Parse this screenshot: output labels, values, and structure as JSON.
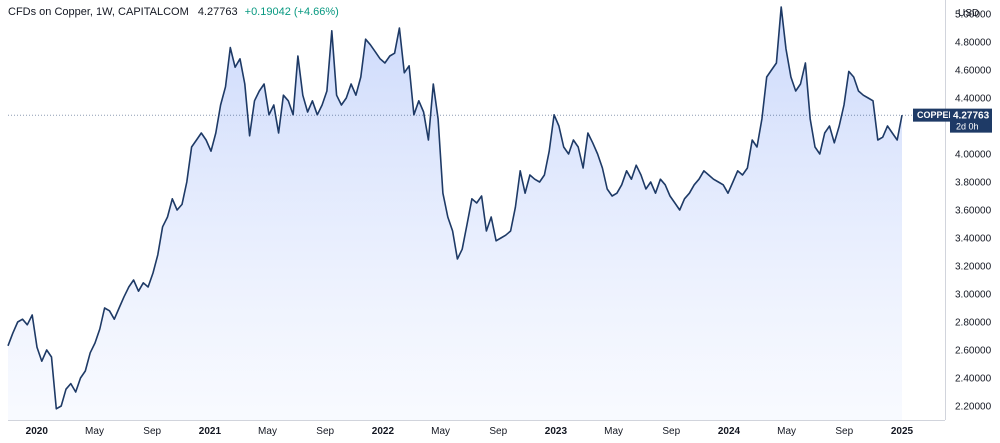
{
  "header": {
    "title": "CFDs on Copper, 1W, CAPITALCOM",
    "last_value": "4.27763",
    "change": "+0.19042 (+4.66%)"
  },
  "price_axis": {
    "currency": "USD",
    "ticks": [
      "5.00000",
      "4.80000",
      "4.60000",
      "4.40000",
      "4.20000",
      "4.00000",
      "3.80000",
      "3.60000",
      "3.40000",
      "3.20000",
      "3.00000",
      "2.80000",
      "2.60000",
      "2.40000",
      "2.20000"
    ]
  },
  "label_badge": {
    "symbol": "COPPER",
    "price": "4.27763",
    "countdown": "2d 0h"
  },
  "colors": {
    "line": "#1e3a66",
    "fill_top": "#c9d7fb",
    "fill_bottom": "#f4f7ff",
    "badge": "#1e3a66",
    "change": "#089981"
  },
  "chart_data": {
    "type": "area",
    "title": "CFDs on Copper, 1W, CAPITALCOM",
    "ylabel": "USD",
    "ylim": [
      2.1,
      5.1
    ],
    "grid": false,
    "x_ticks": [
      {
        "label": "2020",
        "x": "2020-01"
      },
      {
        "label": "May",
        "x": "2020-05"
      },
      {
        "label": "Sep",
        "x": "2020-09"
      },
      {
        "label": "2021",
        "x": "2021-01"
      },
      {
        "label": "May",
        "x": "2021-05"
      },
      {
        "label": "Sep",
        "x": "2021-09"
      },
      {
        "label": "2022",
        "x": "2022-01"
      },
      {
        "label": "May",
        "x": "2022-05"
      },
      {
        "label": "Sep",
        "x": "2022-09"
      },
      {
        "label": "2023",
        "x": "2023-01"
      },
      {
        "label": "May",
        "x": "2023-05"
      },
      {
        "label": "Sep",
        "x": "2023-09"
      },
      {
        "label": "2024",
        "x": "2024-01"
      },
      {
        "label": "May",
        "x": "2024-05"
      },
      {
        "label": "Sep",
        "x": "2024-09"
      },
      {
        "label": "2025",
        "x": "2025-01"
      }
    ],
    "series": [
      {
        "values": [
          [
            "2019-11",
            2.63
          ],
          [
            "2019-12",
            2.72
          ],
          [
            "2019-12",
            2.8
          ],
          [
            "2020-01",
            2.82
          ],
          [
            "2020-01",
            2.78
          ],
          [
            "2020-01",
            2.85
          ],
          [
            "2020-02",
            2.62
          ],
          [
            "2020-02",
            2.52
          ],
          [
            "2020-02",
            2.6
          ],
          [
            "2020-03",
            2.55
          ],
          [
            "2020-03",
            2.18
          ],
          [
            "2020-03",
            2.2
          ],
          [
            "2020-04",
            2.32
          ],
          [
            "2020-04",
            2.36
          ],
          [
            "2020-04",
            2.3
          ],
          [
            "2020-05",
            2.4
          ],
          [
            "2020-05",
            2.45
          ],
          [
            "2020-05",
            2.58
          ],
          [
            "2020-06",
            2.65
          ],
          [
            "2020-06",
            2.75
          ],
          [
            "2020-06",
            2.9
          ],
          [
            "2020-07",
            2.88
          ],
          [
            "2020-07",
            2.82
          ],
          [
            "2020-07",
            2.9
          ],
          [
            "2020-08",
            2.98
          ],
          [
            "2020-08",
            3.05
          ],
          [
            "2020-08",
            3.1
          ],
          [
            "2020-09",
            3.02
          ],
          [
            "2020-09",
            3.08
          ],
          [
            "2020-09",
            3.05
          ],
          [
            "2020-10",
            3.15
          ],
          [
            "2020-10",
            3.28
          ],
          [
            "2020-10",
            3.48
          ],
          [
            "2020-11",
            3.55
          ],
          [
            "2020-11",
            3.68
          ],
          [
            "2020-11",
            3.6
          ],
          [
            "2020-12",
            3.64
          ],
          [
            "2020-12",
            3.8
          ],
          [
            "2020-12",
            4.05
          ],
          [
            "2021-01",
            4.1
          ],
          [
            "2021-01",
            4.15
          ],
          [
            "2021-01",
            4.1
          ],
          [
            "2021-02",
            4.02
          ],
          [
            "2021-02",
            4.15
          ],
          [
            "2021-02",
            4.35
          ],
          [
            "2021-03",
            4.48
          ],
          [
            "2021-03",
            4.76
          ],
          [
            "2021-03",
            4.62
          ],
          [
            "2021-04",
            4.68
          ],
          [
            "2021-04",
            4.5
          ],
          [
            "2021-04",
            4.13
          ],
          [
            "2021-05",
            4.38
          ],
          [
            "2021-05",
            4.45
          ],
          [
            "2021-05",
            4.5
          ],
          [
            "2021-06",
            4.28
          ],
          [
            "2021-06",
            4.35
          ],
          [
            "2021-06",
            4.15
          ],
          [
            "2021-07",
            4.42
          ],
          [
            "2021-07",
            4.38
          ],
          [
            "2021-07",
            4.28
          ],
          [
            "2021-08",
            4.7
          ],
          [
            "2021-08",
            4.42
          ],
          [
            "2021-08",
            4.3
          ],
          [
            "2021-09",
            4.38
          ],
          [
            "2021-09",
            4.28
          ],
          [
            "2021-09",
            4.35
          ],
          [
            "2021-10",
            4.45
          ],
          [
            "2021-10",
            4.88
          ],
          [
            "2021-10",
            4.42
          ],
          [
            "2021-11",
            4.35
          ],
          [
            "2021-11",
            4.4
          ],
          [
            "2021-11",
            4.5
          ],
          [
            "2021-12",
            4.42
          ],
          [
            "2021-12",
            4.55
          ],
          [
            "2021-12",
            4.82
          ],
          [
            "2022-01",
            4.78
          ],
          [
            "2022-01",
            4.73
          ],
          [
            "2022-01",
            4.68
          ],
          [
            "2022-02",
            4.65
          ],
          [
            "2022-02",
            4.7
          ],
          [
            "2022-02",
            4.72
          ],
          [
            "2022-03",
            4.9
          ],
          [
            "2022-03",
            4.58
          ],
          [
            "2022-03",
            4.63
          ],
          [
            "2022-04",
            4.28
          ],
          [
            "2022-04",
            4.38
          ],
          [
            "2022-04",
            4.3
          ],
          [
            "2022-05",
            4.1
          ],
          [
            "2022-05",
            4.5
          ],
          [
            "2022-05",
            4.25
          ],
          [
            "2022-06",
            3.72
          ],
          [
            "2022-06",
            3.55
          ],
          [
            "2022-06",
            3.45
          ],
          [
            "2022-07",
            3.25
          ],
          [
            "2022-07",
            3.32
          ],
          [
            "2022-07",
            3.5
          ],
          [
            "2022-08",
            3.68
          ],
          [
            "2022-08",
            3.65
          ],
          [
            "2022-08",
            3.7
          ],
          [
            "2022-09",
            3.45
          ],
          [
            "2022-09",
            3.55
          ],
          [
            "2022-09",
            3.38
          ],
          [
            "2022-10",
            3.4
          ],
          [
            "2022-10",
            3.42
          ],
          [
            "2022-10",
            3.45
          ],
          [
            "2022-11",
            3.62
          ],
          [
            "2022-11",
            3.88
          ],
          [
            "2022-11",
            3.72
          ],
          [
            "2022-12",
            3.85
          ],
          [
            "2022-12",
            3.82
          ],
          [
            "2022-12",
            3.8
          ],
          [
            "2023-01",
            3.85
          ],
          [
            "2023-01",
            4.02
          ],
          [
            "2023-01",
            4.28
          ],
          [
            "2023-02",
            4.2
          ],
          [
            "2023-02",
            4.05
          ],
          [
            "2023-02",
            4.0
          ],
          [
            "2023-03",
            4.1
          ],
          [
            "2023-03",
            4.05
          ],
          [
            "2023-03",
            3.9
          ],
          [
            "2023-04",
            4.15
          ],
          [
            "2023-04",
            4.08
          ],
          [
            "2023-04",
            4.0
          ],
          [
            "2023-05",
            3.9
          ],
          [
            "2023-05",
            3.75
          ],
          [
            "2023-05",
            3.7
          ],
          [
            "2023-06",
            3.72
          ],
          [
            "2023-06",
            3.78
          ],
          [
            "2023-06",
            3.88
          ],
          [
            "2023-07",
            3.82
          ],
          [
            "2023-07",
            3.92
          ],
          [
            "2023-07",
            3.85
          ],
          [
            "2023-08",
            3.75
          ],
          [
            "2023-08",
            3.8
          ],
          [
            "2023-08",
            3.72
          ],
          [
            "2023-09",
            3.82
          ],
          [
            "2023-09",
            3.78
          ],
          [
            "2023-09",
            3.7
          ],
          [
            "2023-10",
            3.65
          ],
          [
            "2023-10",
            3.6
          ],
          [
            "2023-10",
            3.68
          ],
          [
            "2023-11",
            3.72
          ],
          [
            "2023-11",
            3.78
          ],
          [
            "2023-11",
            3.82
          ],
          [
            "2023-12",
            3.88
          ],
          [
            "2023-12",
            3.85
          ],
          [
            "2023-12",
            3.82
          ],
          [
            "2024-01",
            3.8
          ],
          [
            "2024-01",
            3.78
          ],
          [
            "2024-01",
            3.72
          ],
          [
            "2024-02",
            3.8
          ],
          [
            "2024-02",
            3.88
          ],
          [
            "2024-02",
            3.85
          ],
          [
            "2024-03",
            3.9
          ],
          [
            "2024-03",
            4.1
          ],
          [
            "2024-03",
            4.05
          ],
          [
            "2024-04",
            4.25
          ],
          [
            "2024-04",
            4.55
          ],
          [
            "2024-04",
            4.6
          ],
          [
            "2024-05",
            4.65
          ],
          [
            "2024-05",
            5.05
          ],
          [
            "2024-05",
            4.75
          ],
          [
            "2024-06",
            4.55
          ],
          [
            "2024-06",
            4.45
          ],
          [
            "2024-06",
            4.5
          ],
          [
            "2024-07",
            4.65
          ],
          [
            "2024-07",
            4.25
          ],
          [
            "2024-07",
            4.05
          ],
          [
            "2024-08",
            4.0
          ],
          [
            "2024-08",
            4.15
          ],
          [
            "2024-08",
            4.2
          ],
          [
            "2024-09",
            4.08
          ],
          [
            "2024-09",
            4.2
          ],
          [
            "2024-09",
            4.35
          ],
          [
            "2024-10",
            4.59
          ],
          [
            "2024-10",
            4.55
          ],
          [
            "2024-10",
            4.45
          ],
          [
            "2024-11",
            4.42
          ],
          [
            "2024-11",
            4.4
          ],
          [
            "2024-11",
            4.38
          ],
          [
            "2024-12",
            4.1
          ],
          [
            "2024-12",
            4.12
          ],
          [
            "2024-12",
            4.2
          ],
          [
            "2025-01",
            4.15
          ],
          [
            "2025-01",
            4.1
          ],
          [
            "2025-01",
            4.27763
          ]
        ]
      }
    ]
  }
}
